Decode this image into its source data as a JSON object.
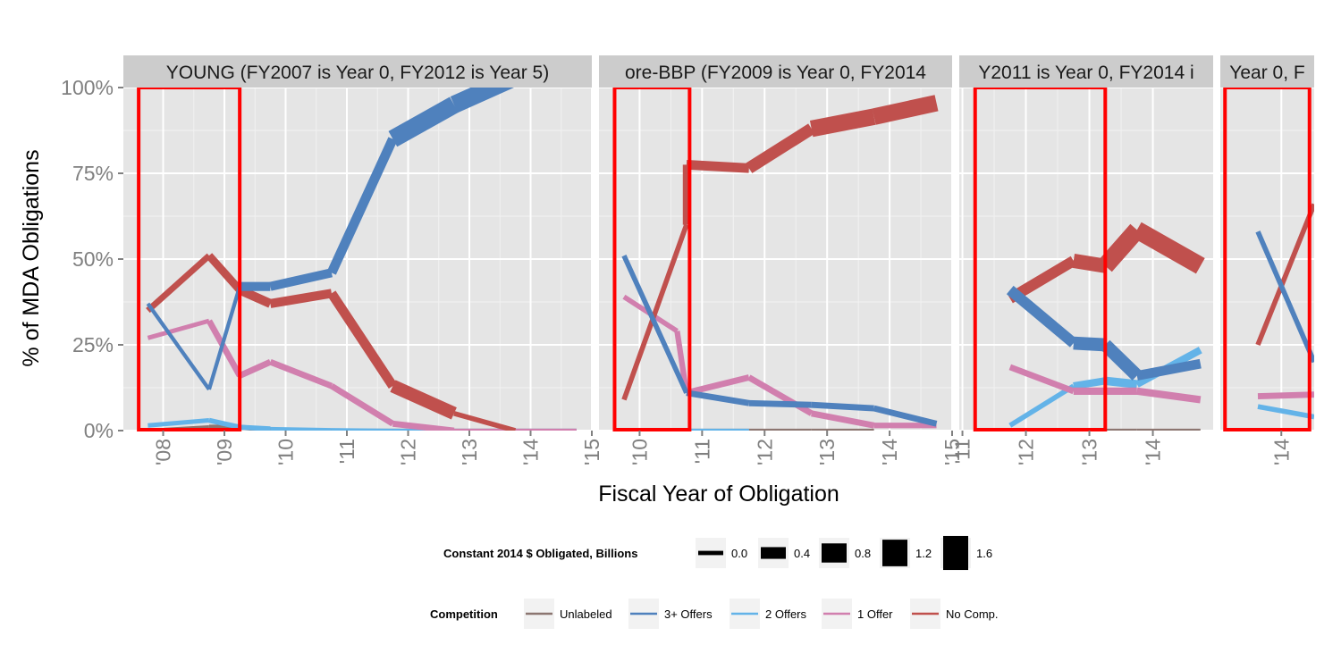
{
  "chart_data": {
    "type": "line",
    "xlabel": "Fiscal Year of Obligation",
    "ylabel": "% of  MDA  Obligations",
    "y_ticks": [
      "0%",
      "25%",
      "50%",
      "75%",
      "100%"
    ],
    "ylim": [
      0,
      1
    ],
    "colors": {
      "Unlabeled": "#8c7671",
      "3+ Offers": "#4f81bd",
      "2 Offers": "#63b3e8",
      "1 Offer": "#d17fae",
      "No Comp.": "#c0504d"
    },
    "panels": [
      {
        "strip": "YOUNG (FY2007 is Year 0, FY2012 is Year 5)",
        "xlim": [
          2007.35,
          2015.0
        ],
        "ticks": [
          {
            "v": 2008,
            "l": "'08"
          },
          {
            "v": 2009,
            "l": "'09"
          },
          {
            "v": 2010,
            "l": "'10"
          },
          {
            "v": 2011,
            "l": "'11"
          },
          {
            "v": 2012,
            "l": "'12"
          },
          {
            "v": 2013,
            "l": "'13"
          },
          {
            "v": 2014,
            "l": "'14"
          },
          {
            "v": 2015,
            "l": "'15"
          }
        ],
        "highlight": [
          2007.6,
          2009.25
        ],
        "series": [
          {
            "name": "Unlabeled",
            "points": [
              [
                2007.75,
                0.0,
                0.1
              ],
              [
                2008.75,
                0.01,
                0.2
              ],
              [
                2009.25,
                0.01,
                0.2
              ],
              [
                2009.75,
                0.002,
                0.1
              ],
              [
                2010.75,
                0.0,
                0.1
              ],
              [
                2011.75,
                0.0,
                0.1
              ],
              [
                2012.75,
                0.0,
                0.1
              ],
              [
                2013.75,
                0.0,
                0.1
              ],
              [
                2014.75,
                0.0,
                0.1
              ]
            ]
          },
          {
            "name": "3+ Offers",
            "points": [
              [
                2007.75,
                0.37,
                0.1
              ],
              [
                2008.75,
                0.12,
                0.1
              ],
              [
                2009.25,
                0.42,
                0.55
              ],
              [
                2009.75,
                0.42,
                0.55
              ],
              [
                2010.75,
                0.46,
                0.6
              ],
              [
                2011.75,
                0.85,
                1.3
              ],
              [
                2012.75,
                0.95,
                1.3
              ],
              [
                2013.75,
                1.03,
                0.8
              ]
            ]
          },
          {
            "name": "2 Offers",
            "points": [
              [
                2007.75,
                0.015,
                0.15
              ],
              [
                2008.75,
                0.03,
                0.2
              ],
              [
                2009.25,
                0.01,
                0.2
              ],
              [
                2009.75,
                0.005,
                0.1
              ],
              [
                2010.75,
                0.002,
                0.1
              ],
              [
                2011.75,
                0.0,
                0.1
              ],
              [
                2012.75,
                0.0,
                0.1
              ],
              [
                2013.75,
                0.0,
                0.1
              ],
              [
                2014.75,
                0.0,
                0.1
              ]
            ]
          },
          {
            "name": "1 Offer",
            "points": [
              [
                2007.75,
                0.27,
                0.15
              ],
              [
                2008.75,
                0.32,
                0.3
              ],
              [
                2009.25,
                0.16,
                0.3
              ],
              [
                2009.75,
                0.2,
                0.3
              ],
              [
                2010.75,
                0.13,
                0.3
              ],
              [
                2011.75,
                0.02,
                0.3
              ],
              [
                2012.75,
                0.0,
                0.1
              ],
              [
                2013.75,
                0.0,
                0.1
              ],
              [
                2014.75,
                0.0,
                0.1
              ]
            ]
          },
          {
            "name": "No Comp.",
            "points": [
              [
                2007.75,
                0.35,
                0.3
              ],
              [
                2008.75,
                0.51,
                0.45
              ],
              [
                2009.25,
                0.41,
                0.55
              ],
              [
                2009.75,
                0.37,
                0.55
              ],
              [
                2010.75,
                0.4,
                0.6
              ],
              [
                2011.75,
                0.13,
                0.9
              ],
              [
                2012.75,
                0.05,
                0.2
              ],
              [
                2013.75,
                0.0,
                0.1
              ]
            ]
          }
        ]
      },
      {
        "strip": "ore-BBP (FY2009 is Year 0, FY2014",
        "xlim": [
          2009.35,
          2015.0
        ],
        "ticks": [
          {
            "v": 2010,
            "l": "'10"
          },
          {
            "v": 2011,
            "l": "'11"
          },
          {
            "v": 2012,
            "l": "'12"
          },
          {
            "v": 2013,
            "l": "'13"
          },
          {
            "v": 2014,
            "l": "'14"
          },
          {
            "v": 2015,
            "l": "'15"
          }
        ],
        "highlight": [
          2009.6,
          2010.8
        ],
        "series": [
          {
            "name": "Unlabeled",
            "points": [
              [
                2010.75,
                0.0,
                0.1
              ],
              [
                2011.75,
                0.0,
                0.1
              ],
              [
                2012.75,
                0.0,
                0.1
              ],
              [
                2013.75,
                0.0,
                0.1
              ]
            ]
          },
          {
            "name": "3+ Offers",
            "points": [
              [
                2009.75,
                0.51,
                0.2
              ],
              [
                2010.75,
                0.11,
                0.3
              ],
              [
                2011.75,
                0.08,
                0.3
              ],
              [
                2012.75,
                0.075,
                0.3
              ],
              [
                2013.75,
                0.065,
                0.3
              ],
              [
                2014.75,
                0.02,
                0.2
              ]
            ]
          },
          {
            "name": "2 Offers",
            "points": [
              [
                2010.75,
                0.0,
                0.1
              ],
              [
                2011.75,
                0.0,
                0.1
              ]
            ]
          },
          {
            "name": "1 Offer",
            "points": [
              [
                2009.75,
                0.39,
                0.2
              ],
              [
                2010.6,
                0.29,
                0.25
              ],
              [
                2010.75,
                0.11,
                0.3
              ],
              [
                2011.75,
                0.155,
                0.3
              ],
              [
                2012.75,
                0.05,
                0.3
              ],
              [
                2013.75,
                0.015,
                0.25
              ],
              [
                2014.75,
                0.015,
                0.2
              ]
            ]
          },
          {
            "name": "No Comp.",
            "points": [
              [
                2009.75,
                0.09,
                0.2
              ],
              [
                2010.75,
                0.6,
                0.4
              ],
              [
                2010.75,
                0.775,
                0.6
              ],
              [
                2011.75,
                0.765,
                0.8
              ],
              [
                2012.75,
                0.88,
                1.2
              ],
              [
                2013.75,
                0.915,
                1.2
              ],
              [
                2014.75,
                0.955,
                1.2
              ]
            ]
          }
        ]
      },
      {
        "strip": "Y2011 is Year 0, FY2014 i",
        "xlim": [
          2010.95,
          2014.95
        ],
        "ticks": [
          {
            "v": 2011,
            "l": "'11"
          },
          {
            "v": 2012,
            "l": "'12"
          },
          {
            "v": 2013,
            "l": "'13"
          },
          {
            "v": 2014,
            "l": "'14"
          }
        ],
        "highlight": [
          2011.2,
          2013.25
        ],
        "series": [
          {
            "name": "Unlabeled",
            "points": [
              [
                2011.75,
                0.0,
                0.1
              ],
              [
                2012.75,
                0.0,
                0.1
              ],
              [
                2013.75,
                0.0,
                0.1
              ],
              [
                2014.75,
                0.0,
                0.1
              ]
            ]
          },
          {
            "name": "3+ Offers",
            "points": [
              [
                2011.75,
                0.41,
                0.7
              ],
              [
                2012.75,
                0.255,
                0.9
              ],
              [
                2013.25,
                0.25,
                0.9
              ],
              [
                2013.75,
                0.16,
                0.6
              ],
              [
                2014.75,
                0.195,
                0.6
              ]
            ]
          },
          {
            "name": "2 Offers",
            "points": [
              [
                2011.75,
                0.015,
                0.2
              ],
              [
                2012.75,
                0.13,
                0.4
              ],
              [
                2013.25,
                0.145,
                0.5
              ],
              [
                2013.75,
                0.135,
                0.4
              ],
              [
                2014.75,
                0.235,
                0.4
              ]
            ]
          },
          {
            "name": "1 Offer",
            "points": [
              [
                2011.75,
                0.185,
                0.3
              ],
              [
                2012.75,
                0.115,
                0.4
              ],
              [
                2013.75,
                0.115,
                0.4
              ],
              [
                2014.75,
                0.09,
                0.4
              ]
            ]
          },
          {
            "name": "No Comp.",
            "points": [
              [
                2011.75,
                0.385,
                0.7
              ],
              [
                2012.75,
                0.495,
                1.0
              ],
              [
                2013.25,
                0.48,
                1.3
              ],
              [
                2013.75,
                0.585,
                1.3
              ],
              [
                2014.75,
                0.48,
                1.3
              ]
            ]
          }
        ]
      },
      {
        "strip": "Year 0, F",
        "xlim": [
          2013.35,
          2014.35
        ],
        "ticks": [
          {
            "v": 2014,
            "l": "'14"
          }
        ],
        "highlight": [
          2013.4,
          2014.3
        ],
        "series": [
          {
            "name": "3+ Offers",
            "points": [
              [
                2013.75,
                0.58,
                0.2
              ],
              [
                2014.35,
                0.2,
                0.2
              ]
            ]
          },
          {
            "name": "2 Offers",
            "points": [
              [
                2013.75,
                0.07,
                0.2
              ],
              [
                2014.35,
                0.04,
                0.2
              ]
            ]
          },
          {
            "name": "1 Offer",
            "points": [
              [
                2013.75,
                0.1,
                0.3
              ],
              [
                2014.35,
                0.105,
                0.3
              ]
            ]
          },
          {
            "name": "No Comp.",
            "points": [
              [
                2013.75,
                0.25,
                0.2
              ],
              [
                2014.35,
                0.66,
                0.3
              ]
            ]
          }
        ]
      }
    ],
    "size_legend": {
      "title": "Constant 2014 $ Obligated, Billions",
      "entries": [
        {
          "value": 0.0,
          "label": "0.0"
        },
        {
          "value": 0.4,
          "label": "0.4"
        },
        {
          "value": 0.8,
          "label": "0.8"
        },
        {
          "value": 1.2,
          "label": "1.2"
        },
        {
          "value": 1.6,
          "label": "1.6"
        }
      ]
    },
    "color_legend": {
      "title": "Competition",
      "entries": [
        "Unlabeled",
        "3+ Offers",
        "2 Offers",
        "1 Offer",
        "No Comp."
      ]
    }
  }
}
